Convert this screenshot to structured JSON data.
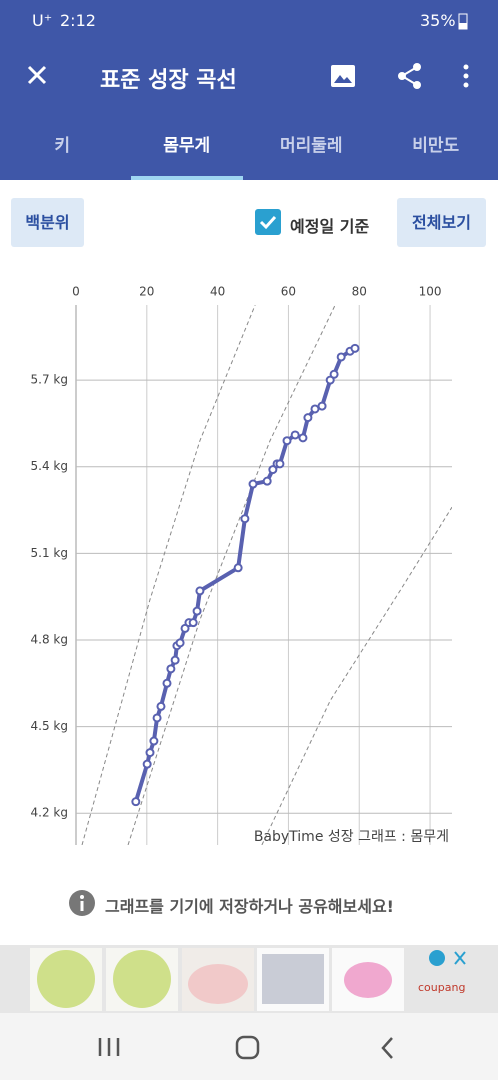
{
  "status_bar": {
    "carrier": "U⁺",
    "time": "2:12",
    "battery": "35%"
  },
  "header": {
    "title": "표준 성장 곡선"
  },
  "tabs": [
    "키",
    "몸무게",
    "머리둘레",
    "비만도"
  ],
  "selected_tab": 1,
  "controls": {
    "percentile_button": "백분위",
    "due_date_label": "예정일 기준",
    "due_date_checked": true,
    "full_view_button": "전체보기"
  },
  "chart_data": {
    "type": "line",
    "annotation": "BabyTime 성장 그래프 : 몸무게",
    "x": [
      16.9,
      20.1,
      20.9,
      22.0,
      22.9,
      24.0,
      25.7,
      26.8,
      28.0,
      28.5,
      29.4,
      30.8,
      31.9,
      33.1,
      34.2,
      35.0,
      45.8,
      47.7,
      50.0,
      54.0,
      55.6,
      56.8,
      57.6,
      59.6,
      61.9,
      64.1,
      65.5,
      67.5,
      69.5,
      71.8,
      72.9,
      74.9,
      77.4,
      78.8
    ],
    "series": [
      {
        "color": "#5961b0",
        "values": [
          4.24,
          4.37,
          4.41,
          4.45,
          4.53,
          4.57,
          4.65,
          4.7,
          4.73,
          4.78,
          4.79,
          4.84,
          4.86,
          4.86,
          4.9,
          4.97,
          5.05,
          5.22,
          5.34,
          5.35,
          5.39,
          5.41,
          5.41,
          5.49,
          5.51,
          5.5,
          5.57,
          5.6,
          5.61,
          5.7,
          5.72,
          5.78,
          5.8,
          5.81
        ]
      }
    ],
    "reference_lines": [
      {
        "color": "#888888",
        "x": [
          1.7,
          20.9,
          35.0,
          50.6
        ],
        "values": [
          4.09,
          4.94,
          5.49,
          5.96
        ]
      },
      {
        "color": "#888888",
        "x": [
          14.7,
          35.0,
          54.8,
          73.2
        ],
        "values": [
          4.09,
          4.87,
          5.49,
          5.96
        ]
      },
      {
        "color": "#888888",
        "x": [
          52.5,
          71.8,
          91.5,
          106.2
        ],
        "values": [
          4.09,
          4.59,
          4.97,
          5.26
        ]
      }
    ],
    "xlim": [
      0,
      106.2
    ],
    "xticks": [
      0,
      20,
      40,
      60,
      80,
      100
    ],
    "ylim": [
      4.09,
      5.96
    ],
    "yticks": [
      {
        "value": 4.2,
        "label": "4.2 kg"
      },
      {
        "value": 4.5,
        "label": "4.5 kg"
      },
      {
        "value": 4.8,
        "label": "4.8 kg"
      },
      {
        "value": 5.1,
        "label": "5.1 kg"
      },
      {
        "value": 5.4,
        "label": "5.4 kg"
      },
      {
        "value": 5.7,
        "label": "5.7 kg"
      }
    ],
    "grid": true
  },
  "info": {
    "text": "그래프를 기기에 저장하거나 공유해보세요!"
  },
  "ad": {
    "brand": "coupang"
  }
}
